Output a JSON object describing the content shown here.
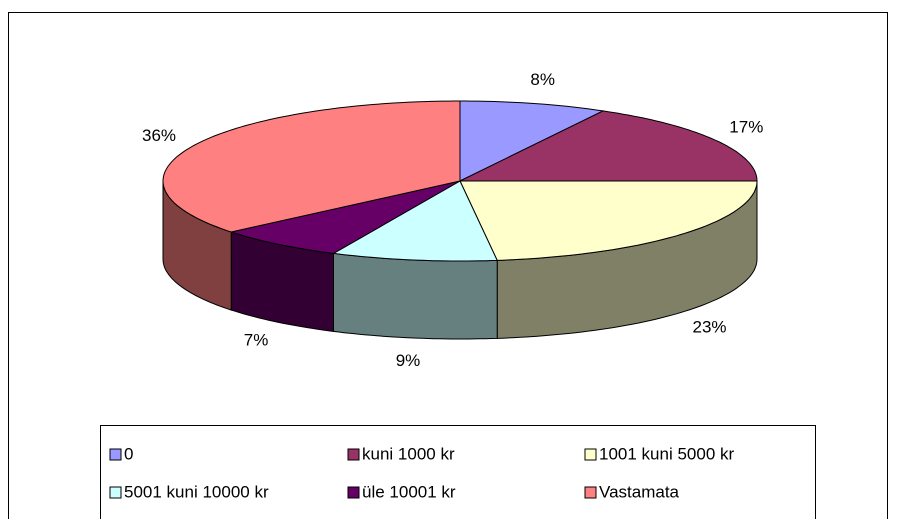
{
  "chart_data": {
    "type": "pie",
    "categories": [
      "0",
      "kuni 1000 kr",
      "1001 kuni 5000 kr",
      "5001 kuni 10000 kr",
      "üle 10001 kr",
      "Vastamata"
    ],
    "values": [
      8,
      17,
      23,
      9,
      7,
      36
    ],
    "value_labels": [
      "8%",
      "17%",
      "23%",
      "9%",
      "7%",
      "36%"
    ],
    "colors": [
      "#9999ff",
      "#993366",
      "#ffffcc",
      "#ccffff",
      "#660066",
      "#ff8080"
    ]
  }
}
